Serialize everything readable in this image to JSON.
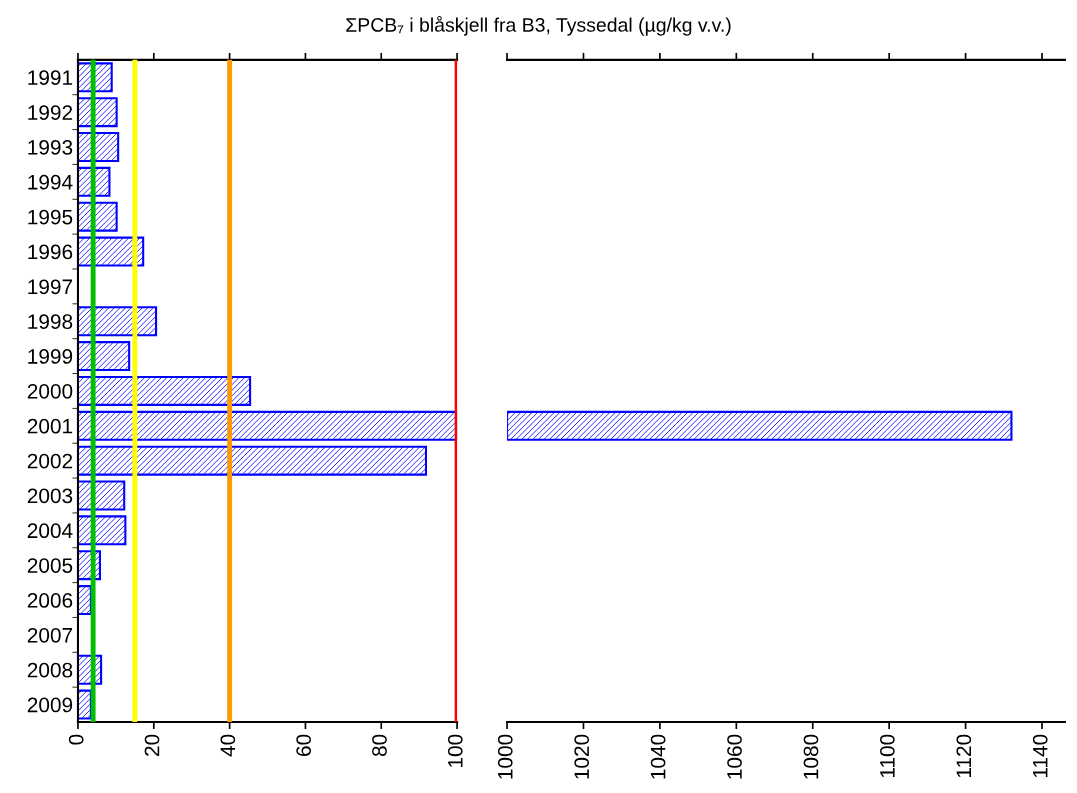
{
  "chart_data": [
    {
      "type": "bar",
      "orientation": "horizontal",
      "title": "ΣPCB₇ i blåskjell fra B3, Tyssedal (µg/kg v.v.)",
      "categories": [
        "1991",
        "1992",
        "1993",
        "1994",
        "1995",
        "1996",
        "1997",
        "1998",
        "1999",
        "2000",
        "2001",
        "2002",
        "2003",
        "2004",
        "2005",
        "2006",
        "2007",
        "2008",
        "2009"
      ],
      "values": [
        8.9,
        10.2,
        10.6,
        8.3,
        10.2,
        17.2,
        null,
        20.6,
        13.5,
        45.4,
        100,
        91.8,
        12.2,
        12.5,
        5.8,
        3.4,
        null,
        6.1,
        3.4
      ],
      "color": "#0000ff",
      "xlim": [
        0,
        100
      ],
      "xticks": [
        0,
        20,
        40,
        60,
        80,
        100
      ],
      "ref_lines": [
        {
          "axis": "x",
          "value": 4,
          "color": "#00c000"
        },
        {
          "axis": "x",
          "value": 15,
          "color": "#ffff00"
        },
        {
          "axis": "x",
          "value": 40,
          "color": "#ff9900"
        },
        {
          "axis": "x",
          "value": 100,
          "color": "#ff0000"
        }
      ],
      "grid": false
    },
    {
      "type": "bar",
      "orientation": "horizontal",
      "categories": [
        "1991",
        "1992",
        "1993",
        "1994",
        "1995",
        "1996",
        "1997",
        "1998",
        "1999",
        "2000",
        "2001",
        "2002",
        "2003",
        "2004",
        "2005",
        "2006",
        "2007",
        "2008",
        "2009"
      ],
      "values": [
        null,
        null,
        null,
        null,
        null,
        null,
        null,
        null,
        null,
        null,
        132,
        null,
        null,
        null,
        null,
        null,
        null,
        null,
        null
      ],
      "base": [
        null,
        null,
        null,
        null,
        null,
        null,
        null,
        null,
        null,
        null,
        1000,
        null,
        null,
        null,
        null,
        null,
        null,
        null,
        null
      ],
      "color": "#0000ff",
      "xlim": [
        1000,
        1146
      ],
      "xticks": [
        1000,
        1020,
        1040,
        1060,
        1080,
        1100,
        1120,
        1140
      ],
      "tick_labels": "x",
      "grid": false
    }
  ]
}
